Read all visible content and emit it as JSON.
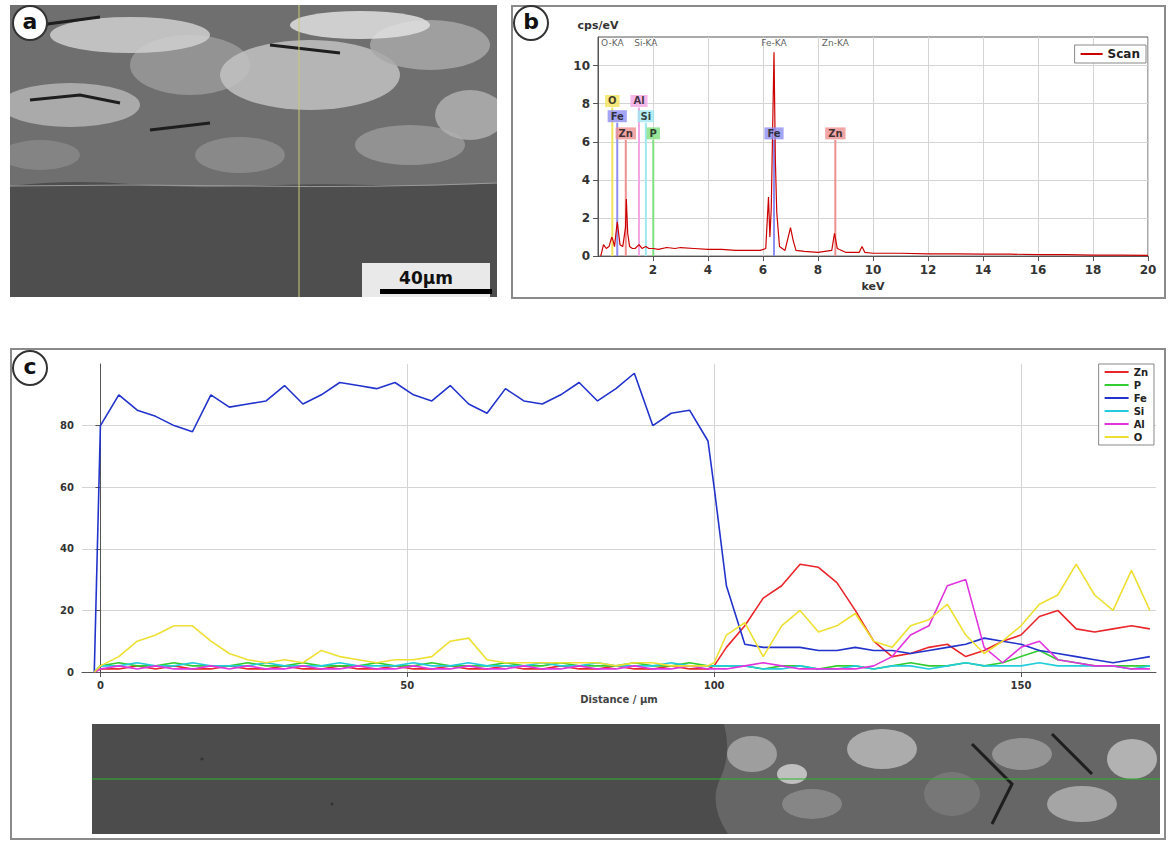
{
  "image": {
    "panel": "a",
    "scale_bar": "40μm"
  },
  "chart_data": [
    {
      "panel": "b",
      "type": "line",
      "y_label": "cps/eV",
      "x_label": "keV",
      "xlim": [
        0,
        20
      ],
      "xticks": [
        2,
        4,
        6,
        8,
        10,
        12,
        14,
        16,
        18,
        20
      ],
      "ylim": [
        0,
        11.5
      ],
      "yticks": [
        0,
        2,
        4,
        6,
        8,
        10
      ],
      "grid": true,
      "legend": "upper right",
      "x": [
        0.1,
        0.2,
        0.3,
        0.4,
        0.5,
        0.55,
        0.6,
        0.7,
        0.75,
        0.8,
        0.9,
        1.0,
        1.03,
        1.08,
        1.15,
        1.25,
        1.35,
        1.49,
        1.6,
        1.74,
        1.85,
        2.01,
        2.2,
        2.5,
        2.8,
        3.0,
        3.5,
        4.0,
        4.5,
        5.0,
        5.5,
        5.9,
        6.1,
        6.2,
        6.25,
        6.3,
        6.4,
        6.45,
        6.5,
        6.6,
        6.8,
        7.0,
        7.1,
        7.2,
        7.5,
        8.0,
        8.5,
        8.6,
        8.7,
        9.0,
        9.5,
        9.6,
        9.7,
        10,
        11,
        12,
        13,
        14,
        15,
        16,
        17,
        18,
        19,
        20
      ],
      "series": [
        {
          "name": "Scan",
          "color": "#cc0000",
          "values": [
            0,
            0.6,
            0.4,
            0.5,
            1.0,
            0.8,
            0.5,
            1.8,
            1.2,
            0.6,
            0.5,
            1.5,
            3.0,
            1.2,
            0.5,
            0.4,
            0.4,
            0.6,
            0.4,
            0.5,
            0.4,
            0.4,
            0.35,
            0.45,
            0.4,
            0.45,
            0.4,
            0.35,
            0.35,
            0.3,
            0.3,
            0.3,
            0.4,
            3.1,
            1.0,
            2.5,
            10.7,
            5,
            2.3,
            0.5,
            0.3,
            1.5,
            0.8,
            0.3,
            0.25,
            0.2,
            0.3,
            1.2,
            0.4,
            0.2,
            0.2,
            0.5,
            0.2,
            0.15,
            0.15,
            0.12,
            0.12,
            0.1,
            0.1,
            0.08,
            0.08,
            0.05,
            0.05,
            0.04
          ]
        }
      ],
      "element_lines": [
        {
          "label": "O",
          "energy": 0.52,
          "height": 7.8,
          "color": "#f2e35c"
        },
        {
          "label": "Al",
          "energy": 1.49,
          "height": 7.8,
          "color": "#f3a6e6"
        },
        {
          "label": "Fe",
          "energy": 0.7,
          "height": 7.0,
          "color": "#8f8ff2"
        },
        {
          "label": "Si",
          "energy": 1.74,
          "height": 7.0,
          "color": "#9ee8f0"
        },
        {
          "label": "Zn",
          "energy": 1.01,
          "height": 6.1,
          "color": "#f09090"
        },
        {
          "label": "P",
          "energy": 2.01,
          "height": 6.1,
          "color": "#7fe07f"
        },
        {
          "label": "Fe",
          "energy": 6.4,
          "height": 6.1,
          "color": "#8f8ff2"
        },
        {
          "label": "Zn",
          "energy": 8.63,
          "height": 6.1,
          "color": "#f09090"
        }
      ],
      "peak_labels": [
        {
          "label": "O-KA",
          "energy": 0.52
        },
        {
          "label": "Si-KA",
          "energy": 1.74
        },
        {
          "label": "Fe-KA",
          "energy": 6.4
        },
        {
          "label": "Zn-KA",
          "energy": 8.63
        }
      ]
    },
    {
      "panel": "c",
      "type": "line",
      "x_label": "Distance / μm",
      "xlim": [
        -3,
        172
      ],
      "xticks": [
        0,
        50,
        100,
        150
      ],
      "ylim": [
        0,
        100
      ],
      "yticks": [
        0,
        20,
        40,
        60,
        80
      ],
      "grid": true,
      "legend": "upper right",
      "x": [
        -1,
        0,
        3,
        6,
        9,
        12,
        15,
        18,
        21,
        24,
        27,
        30,
        33,
        36,
        39,
        42,
        45,
        48,
        51,
        54,
        57,
        60,
        63,
        66,
        69,
        72,
        75,
        78,
        81,
        84,
        87,
        90,
        93,
        96,
        99,
        100,
        102,
        105,
        108,
        111,
        114,
        117,
        120,
        123,
        126,
        129,
        132,
        135,
        138,
        141,
        144,
        147,
        150,
        153,
        156,
        159,
        162,
        165,
        168,
        171
      ],
      "series": [
        {
          "name": "Zn",
          "color": "#e8262b",
          "values": [
            0,
            1,
            1,
            2,
            1,
            2,
            1,
            1,
            2,
            1,
            1,
            2,
            1,
            1,
            2,
            1,
            1,
            2,
            1,
            1,
            2,
            1,
            1,
            2,
            1,
            1,
            2,
            1,
            1,
            2,
            1,
            1,
            2,
            1,
            1,
            2,
            8,
            15,
            24,
            28,
            35,
            34,
            29,
            20,
            10,
            5,
            6,
            8,
            9,
            5,
            7,
            10,
            12,
            18,
            20,
            14,
            13,
            14,
            15,
            14
          ]
        },
        {
          "name": "P",
          "color": "#33cc33",
          "values": [
            0,
            2,
            3,
            2,
            2,
            3,
            2,
            2,
            2,
            3,
            2,
            2,
            3,
            2,
            2,
            2,
            3,
            2,
            2,
            3,
            2,
            2,
            2,
            3,
            2,
            2,
            3,
            2,
            2,
            2,
            3,
            2,
            2,
            3,
            2,
            2,
            2,
            2,
            1,
            2,
            2,
            1,
            2,
            2,
            1,
            2,
            3,
            2,
            2,
            3,
            2,
            3,
            5,
            7,
            4,
            3,
            2,
            2,
            2,
            2
          ]
        },
        {
          "name": "Fe",
          "color": "#2233cc",
          "values": [
            0,
            80,
            90,
            85,
            83,
            80,
            78,
            90,
            86,
            87,
            88,
            93,
            87,
            90,
            94,
            93,
            92,
            94,
            90,
            88,
            93,
            87,
            84,
            92,
            88,
            87,
            90,
            94,
            88,
            92,
            97,
            80,
            84,
            85,
            75,
            60,
            28,
            9,
            8,
            8,
            8,
            7,
            7,
            8,
            7,
            7,
            6,
            7,
            8,
            9,
            11,
            10,
            9,
            7,
            6,
            5,
            4,
            3,
            4,
            5
          ]
        },
        {
          "name": "Si",
          "color": "#22ccdd",
          "values": [
            0,
            2,
            2,
            3,
            2,
            2,
            3,
            2,
            2,
            2,
            3,
            2,
            2,
            2,
            3,
            2,
            2,
            2,
            3,
            2,
            2,
            3,
            2,
            2,
            2,
            3,
            2,
            2,
            3,
            2,
            2,
            2,
            3,
            2,
            2,
            2,
            2,
            2,
            1,
            1,
            2,
            1,
            1,
            2,
            1,
            2,
            2,
            1,
            2,
            3,
            2,
            2,
            2,
            3,
            2,
            2,
            2,
            2,
            1,
            2
          ]
        },
        {
          "name": "Al",
          "color": "#e033dd",
          "values": [
            0,
            1,
            2,
            1,
            2,
            1,
            1,
            2,
            1,
            2,
            1,
            1,
            2,
            1,
            1,
            2,
            1,
            1,
            2,
            1,
            1,
            2,
            1,
            1,
            2,
            1,
            1,
            2,
            1,
            1,
            2,
            1,
            1,
            2,
            1,
            1,
            1,
            2,
            3,
            2,
            1,
            1,
            1,
            1,
            2,
            5,
            12,
            15,
            28,
            30,
            8,
            3,
            8,
            10,
            4,
            3,
            2,
            2,
            1,
            1
          ]
        },
        {
          "name": "O",
          "color": "#eee033",
          "values": [
            0,
            2,
            5,
            10,
            12,
            15,
            15,
            10,
            6,
            4,
            3,
            4,
            3,
            7,
            5,
            4,
            3,
            4,
            4,
            5,
            10,
            11,
            4,
            3,
            3,
            3,
            3,
            3,
            3,
            2,
            3,
            3,
            2,
            2,
            2,
            3,
            12,
            16,
            5,
            15,
            20,
            13,
            15,
            19,
            10,
            8,
            15,
            17,
            22,
            12,
            6,
            10,
            15,
            22,
            25,
            35,
            25,
            20,
            33,
            20
          ]
        }
      ]
    }
  ]
}
